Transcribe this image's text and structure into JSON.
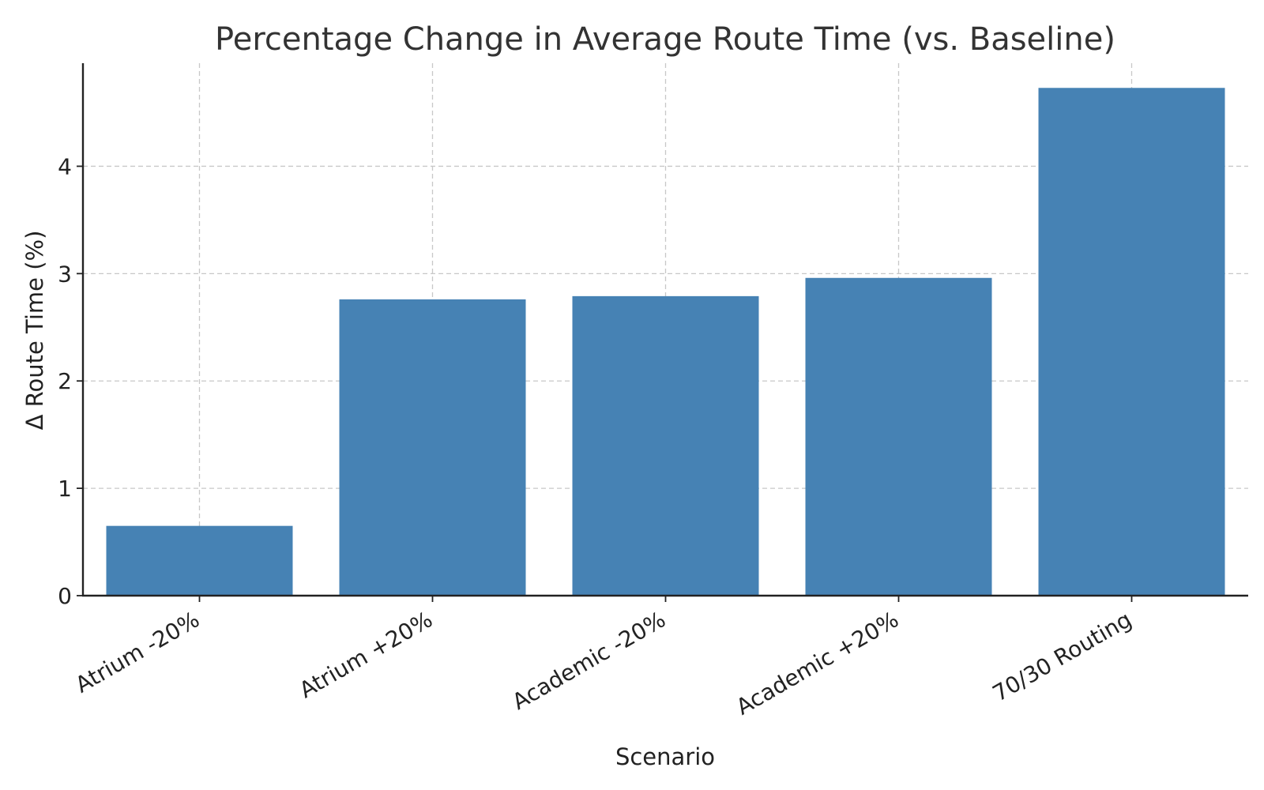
{
  "chart_data": {
    "type": "bar",
    "title": "Percentage Change in Average Route Time (vs. Baseline)",
    "xlabel": "Scenario",
    "ylabel": "Δ Route Time (%)",
    "categories": [
      "Atrium -20%",
      "Atrium +20%",
      "Academic -20%",
      "Academic +20%",
      "70/30 Routing"
    ],
    "values": [
      0.65,
      2.76,
      2.79,
      2.96,
      4.73
    ],
    "ylim": [
      0,
      4.96
    ],
    "yticks": [
      0,
      1,
      2,
      3,
      4
    ],
    "grid": true,
    "bar_color": "#4682b4"
  }
}
